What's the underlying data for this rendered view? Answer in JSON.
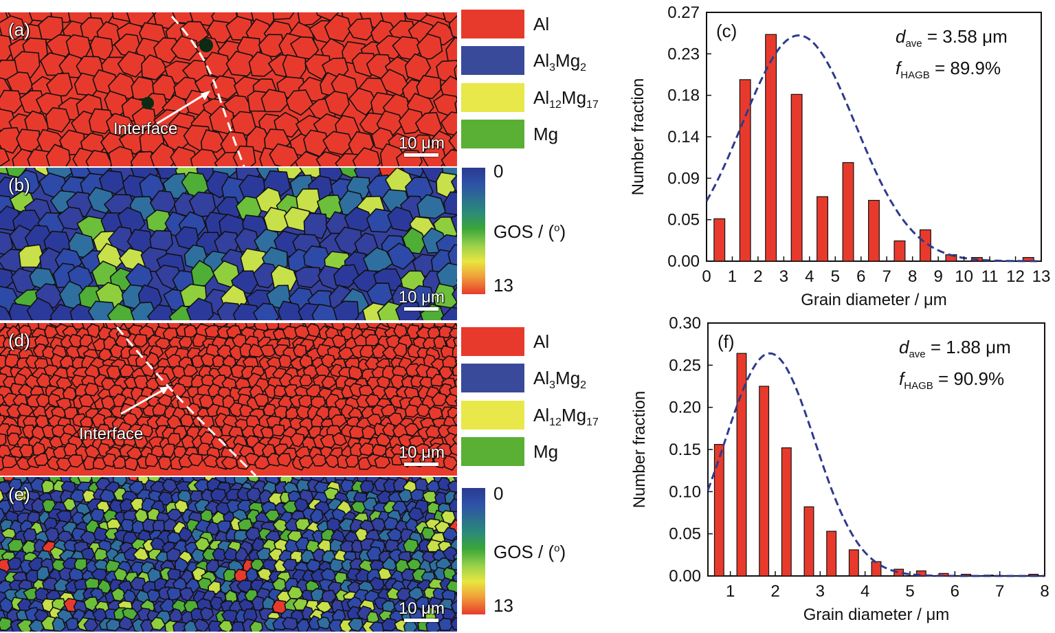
{
  "figure": {
    "panels": {
      "a": {
        "letter": "(a)",
        "scale_label": "10 μm",
        "interface_label": "Interface"
      },
      "b": {
        "letter": "(b)",
        "scale_label": "10 μm"
      },
      "d": {
        "letter": "(d)",
        "scale_label": "10 μm",
        "interface_label": "Interface"
      },
      "e": {
        "letter": "(e)",
        "scale_label": "10 μm"
      }
    },
    "phase_legend": [
      {
        "label": "Al",
        "color": "#e83a2c"
      },
      {
        "label": "Al3Mg2",
        "base": "Al",
        "sub1": "3",
        "mid": "Mg",
        "sub2": "2",
        "color": "#3a4a9a"
      },
      {
        "label": "Al12Mg17",
        "base": "Al",
        "sub1": "12",
        "mid": "Mg",
        "sub2": "17",
        "color": "#e8e84a"
      },
      {
        "label": "Mg",
        "color": "#5ab034"
      }
    ],
    "gos_colorbar": {
      "min_label": "0",
      "max_label": "13",
      "title": "GOS / (o)",
      "title_main": "GOS / (",
      "title_sup": "o",
      "title_end": ")"
    }
  },
  "chart_data": [
    {
      "type": "bar",
      "panel_letter": "(c)",
      "xlabel": "Grain diameter / μm",
      "ylabel": "Number fraction",
      "xlim": [
        0,
        13
      ],
      "ylim": [
        0,
        0.27
      ],
      "xticks": [
        "0",
        "1",
        "2",
        "3",
        "4",
        "5",
        "6",
        "7",
        "8",
        "9",
        "10",
        "11",
        "12",
        "13"
      ],
      "yticks": [
        "0.00",
        "0.05",
        "0.09",
        "0.14",
        "0.18",
        "0.23",
        "0.27"
      ],
      "ytick_values": [
        0,
        0.045,
        0.09,
        0.135,
        0.18,
        0.225,
        0.27
      ],
      "x": [
        0.5,
        1.5,
        2.5,
        3.5,
        4.5,
        5.5,
        6.5,
        7.5,
        8.5,
        9.5,
        10.5,
        12.5
      ],
      "values": [
        0.046,
        0.197,
        0.246,
        0.181,
        0.07,
        0.107,
        0.066,
        0.022,
        0.034,
        0.007,
        0.004,
        0.004
      ],
      "fit": {
        "mean": 3.58,
        "peak": 0.245,
        "sigma": 2.2,
        "style": "dashed",
        "color": "#2e3a8c"
      },
      "bar_color": "#e83a2c",
      "annotation": {
        "d_label": "d",
        "d_sub": "ave",
        "d_value": " = 3.58 μm",
        "f_label": "f",
        "f_sub": "HAGB",
        "f_value": " = 89.9%"
      }
    },
    {
      "type": "bar",
      "panel_letter": "(f)",
      "xlabel": "Grain diameter / μm",
      "ylabel": "Number fraction",
      "xlim": [
        0.5,
        8
      ],
      "ylim": [
        0,
        0.3
      ],
      "xticks": [
        "1",
        "2",
        "3",
        "4",
        "5",
        "6",
        "7",
        "8"
      ],
      "xtick_values": [
        1,
        2,
        3,
        4,
        5,
        6,
        7,
        8
      ],
      "yticks": [
        "0.00",
        "0.05",
        "0.10",
        "0.15",
        "0.20",
        "0.25",
        "0.30"
      ],
      "ytick_values": [
        0,
        0.05,
        0.1,
        0.15,
        0.2,
        0.25,
        0.3
      ],
      "x": [
        0.75,
        1.25,
        1.75,
        2.25,
        2.75,
        3.25,
        3.75,
        4.25,
        4.75,
        5.25,
        5.75,
        6.25,
        6.75,
        7.75
      ],
      "values": [
        0.156,
        0.264,
        0.225,
        0.152,
        0.082,
        0.053,
        0.031,
        0.017,
        0.008,
        0.006,
        0.003,
        0.002,
        0.001,
        0.002
      ],
      "fit": {
        "mean": 1.88,
        "peak": 0.264,
        "sigma": 1.0,
        "style": "dashed",
        "color": "#2e3a8c"
      },
      "bar_color": "#e83a2c",
      "annotation": {
        "d_label": "d",
        "d_sub": "ave",
        "d_value": " = 1.88 μm",
        "f_label": "f",
        "f_sub": "HAGB",
        "f_value": " = 90.9%"
      }
    }
  ]
}
